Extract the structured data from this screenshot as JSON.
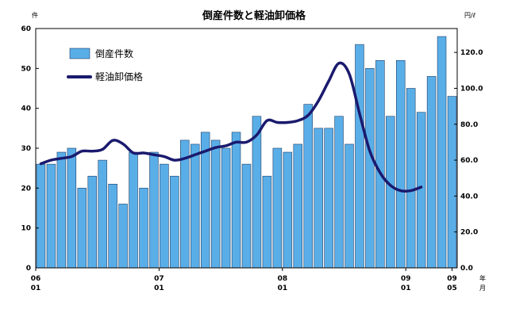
{
  "chart_data": {
    "type": "bar",
    "title": "倒産件数と軽油卸価格",
    "left_axis": {
      "unit": "件",
      "ylim": [
        0,
        60
      ],
      "ticks": [
        "0",
        "10",
        "20",
        "30",
        "40",
        "50",
        "60"
      ]
    },
    "right_axis": {
      "unit": "円/ℓ",
      "ylim": [
        0,
        133.3
      ],
      "ticks": [
        "0.0",
        "20.0",
        "40.0",
        "60.0",
        "80.0",
        "100.0",
        "120.0"
      ]
    },
    "x_axis": {
      "year_unit": "年",
      "month_unit": "月",
      "tick_labels": [
        {
          "index": 0,
          "year": "06",
          "month": "01"
        },
        {
          "index": 12,
          "year": "07",
          "month": "01"
        },
        {
          "index": 24,
          "year": "08",
          "month": "01"
        },
        {
          "index": 36,
          "year": "09",
          "month": "01"
        },
        {
          "index": 40,
          "year": "09",
          "month": "05"
        }
      ]
    },
    "legend": {
      "position": "top-left"
    },
    "grid": false,
    "series": [
      {
        "name": "倒産件数",
        "type": "bar",
        "axis": "left",
        "color": "#5aaee8",
        "values": [
          26,
          26,
          29,
          30,
          20,
          23,
          27,
          21,
          16,
          29,
          20,
          29,
          26,
          23,
          32,
          31,
          34,
          32,
          30,
          34,
          26,
          38,
          23,
          30,
          29,
          31,
          41,
          35,
          35,
          38,
          31,
          56,
          50,
          52,
          38,
          52,
          45,
          39,
          48,
          58,
          43
        ]
      },
      {
        "name": "軽油卸価格",
        "type": "line",
        "axis": "right",
        "color": "#1a1a6e",
        "values": [
          58,
          60,
          61,
          62,
          65,
          65,
          66,
          71,
          69,
          64,
          64,
          63,
          62,
          60,
          61,
          63,
          65,
          67,
          68,
          70,
          70,
          74,
          82,
          81,
          81,
          82,
          85,
          93,
          104,
          114,
          108,
          86,
          65,
          53,
          46,
          43,
          43,
          45
        ]
      }
    ]
  }
}
